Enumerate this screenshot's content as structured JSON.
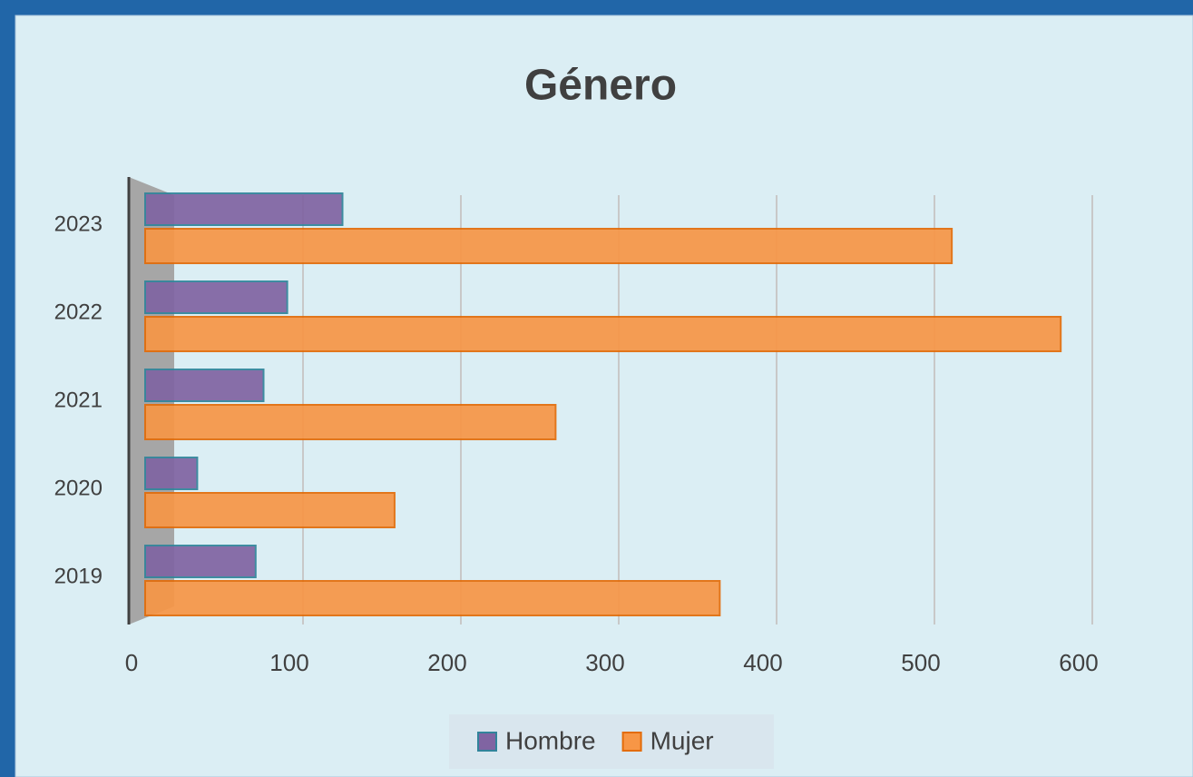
{
  "chart_data": {
    "type": "bar",
    "orientation": "horizontal",
    "title": "Género",
    "categories": [
      "2019",
      "2020",
      "2021",
      "2022",
      "2023"
    ],
    "series": [
      {
        "name": "Hombre",
        "color": "#8064a2",
        "values": [
          70,
          33,
          75,
          90,
          125
        ]
      },
      {
        "name": "Mujer",
        "color": "#f79646",
        "values": [
          364,
          158,
          260,
          580,
          511
        ]
      }
    ],
    "xlim": [
      0,
      600
    ],
    "xticks": [
      0,
      100,
      200,
      300,
      400,
      500,
      600
    ],
    "grid": true,
    "legend": "bottom"
  }
}
